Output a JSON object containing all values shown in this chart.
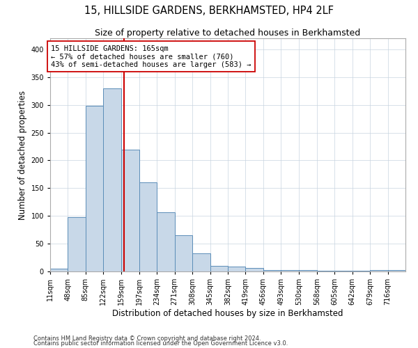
{
  "title": "15, HILLSIDE GARDENS, BERKHAMSTED, HP4 2LF",
  "subtitle": "Size of property relative to detached houses in Berkhamsted",
  "xlabel": "Distribution of detached houses by size in Berkhamsted",
  "ylabel": "Number of detached properties",
  "footnote1": "Contains HM Land Registry data © Crown copyright and database right 2024.",
  "footnote2": "Contains public sector information licensed under the Open Government Licence v3.0.",
  "bin_edges": [
    11,
    48,
    85,
    122,
    159,
    197,
    234,
    271,
    308,
    345,
    382,
    419,
    456,
    493,
    530,
    568,
    605,
    642,
    679,
    716,
    753
  ],
  "bar_heights": [
    5,
    98,
    298,
    330,
    219,
    160,
    106,
    65,
    32,
    10,
    9,
    6,
    2,
    2,
    2,
    1,
    1,
    1,
    2,
    2
  ],
  "bar_color": "#c8d8e8",
  "bar_edge_color": "#5b8db8",
  "property_size": 165,
  "vline_color": "#cc0000",
  "annotation_line1": "15 HILLSIDE GARDENS: 165sqm",
  "annotation_line2": "← 57% of detached houses are smaller (760)",
  "annotation_line3": "43% of semi-detached houses are larger (583) →",
  "annotation_box_color": "#ffffff",
  "annotation_box_edge": "#cc0000",
  "ylim": [
    0,
    420
  ],
  "yticks": [
    0,
    50,
    100,
    150,
    200,
    250,
    300,
    350,
    400
  ],
  "background_color": "#ffffff",
  "grid_color": "#c8d4e0",
  "title_fontsize": 10.5,
  "subtitle_fontsize": 9,
  "axis_label_fontsize": 8.5,
  "tick_fontsize": 7,
  "annotation_fontsize": 7.5
}
